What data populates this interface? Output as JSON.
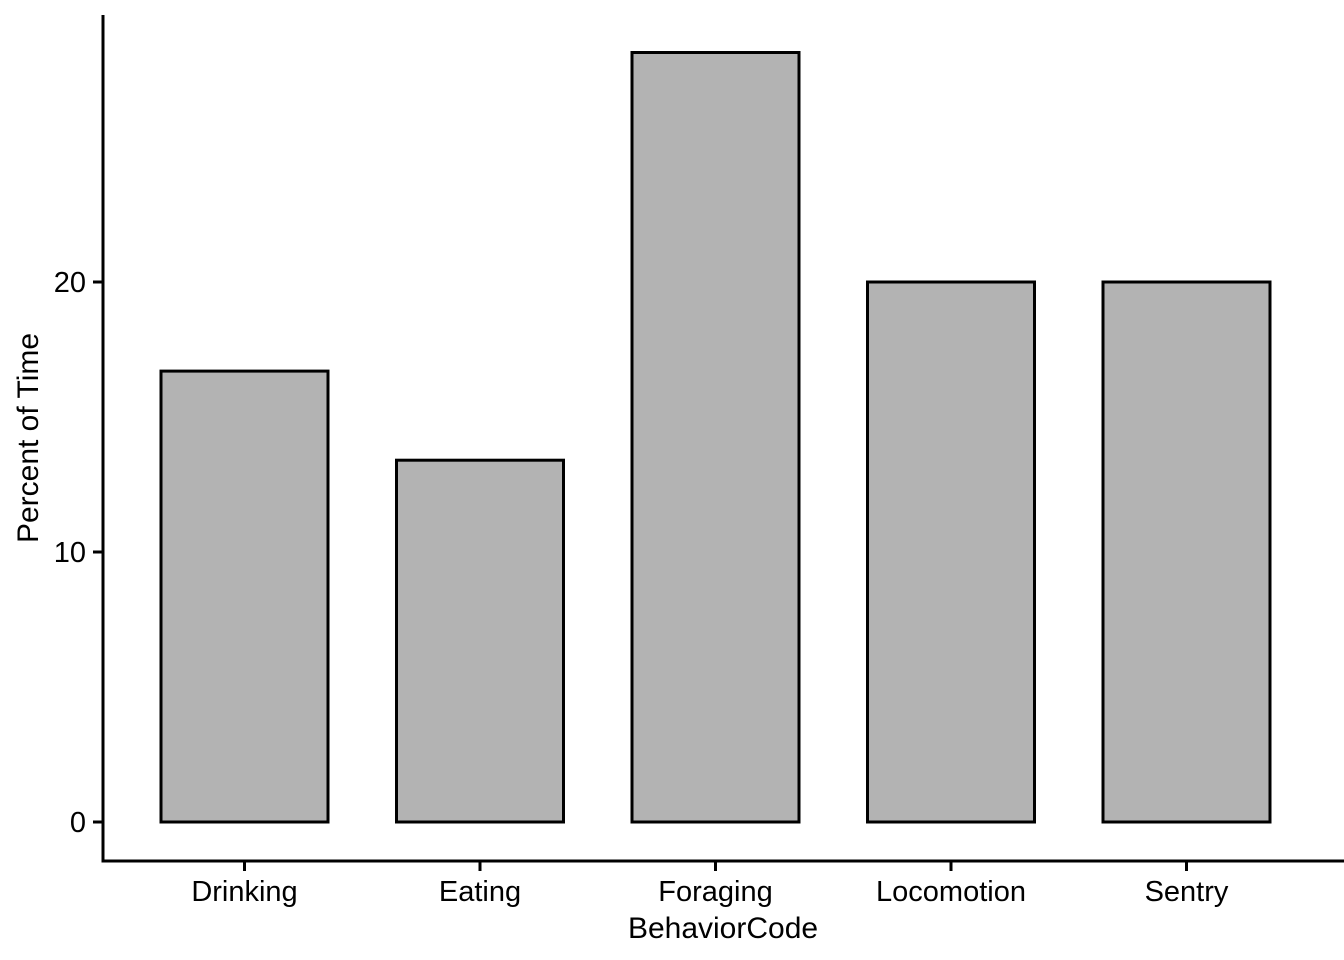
{
  "chart_data": {
    "type": "bar",
    "title": "",
    "xlabel": "BehaviorCode",
    "ylabel": "Percent of Time",
    "categories": [
      "Drinking",
      "Eating",
      "Foraging",
      "Locomotion",
      "Sentry"
    ],
    "values": [
      16.7,
      13.4,
      28.5,
      20,
      20
    ],
    "yticks": [
      0,
      10,
      20
    ],
    "ylim": [
      -1.4,
      29.9
    ],
    "grid": false,
    "legend": false,
    "bar_fill": "#b3b3b3",
    "bar_stroke": "#000000",
    "axis_color": "#000000",
    "background": "#ffffff"
  }
}
